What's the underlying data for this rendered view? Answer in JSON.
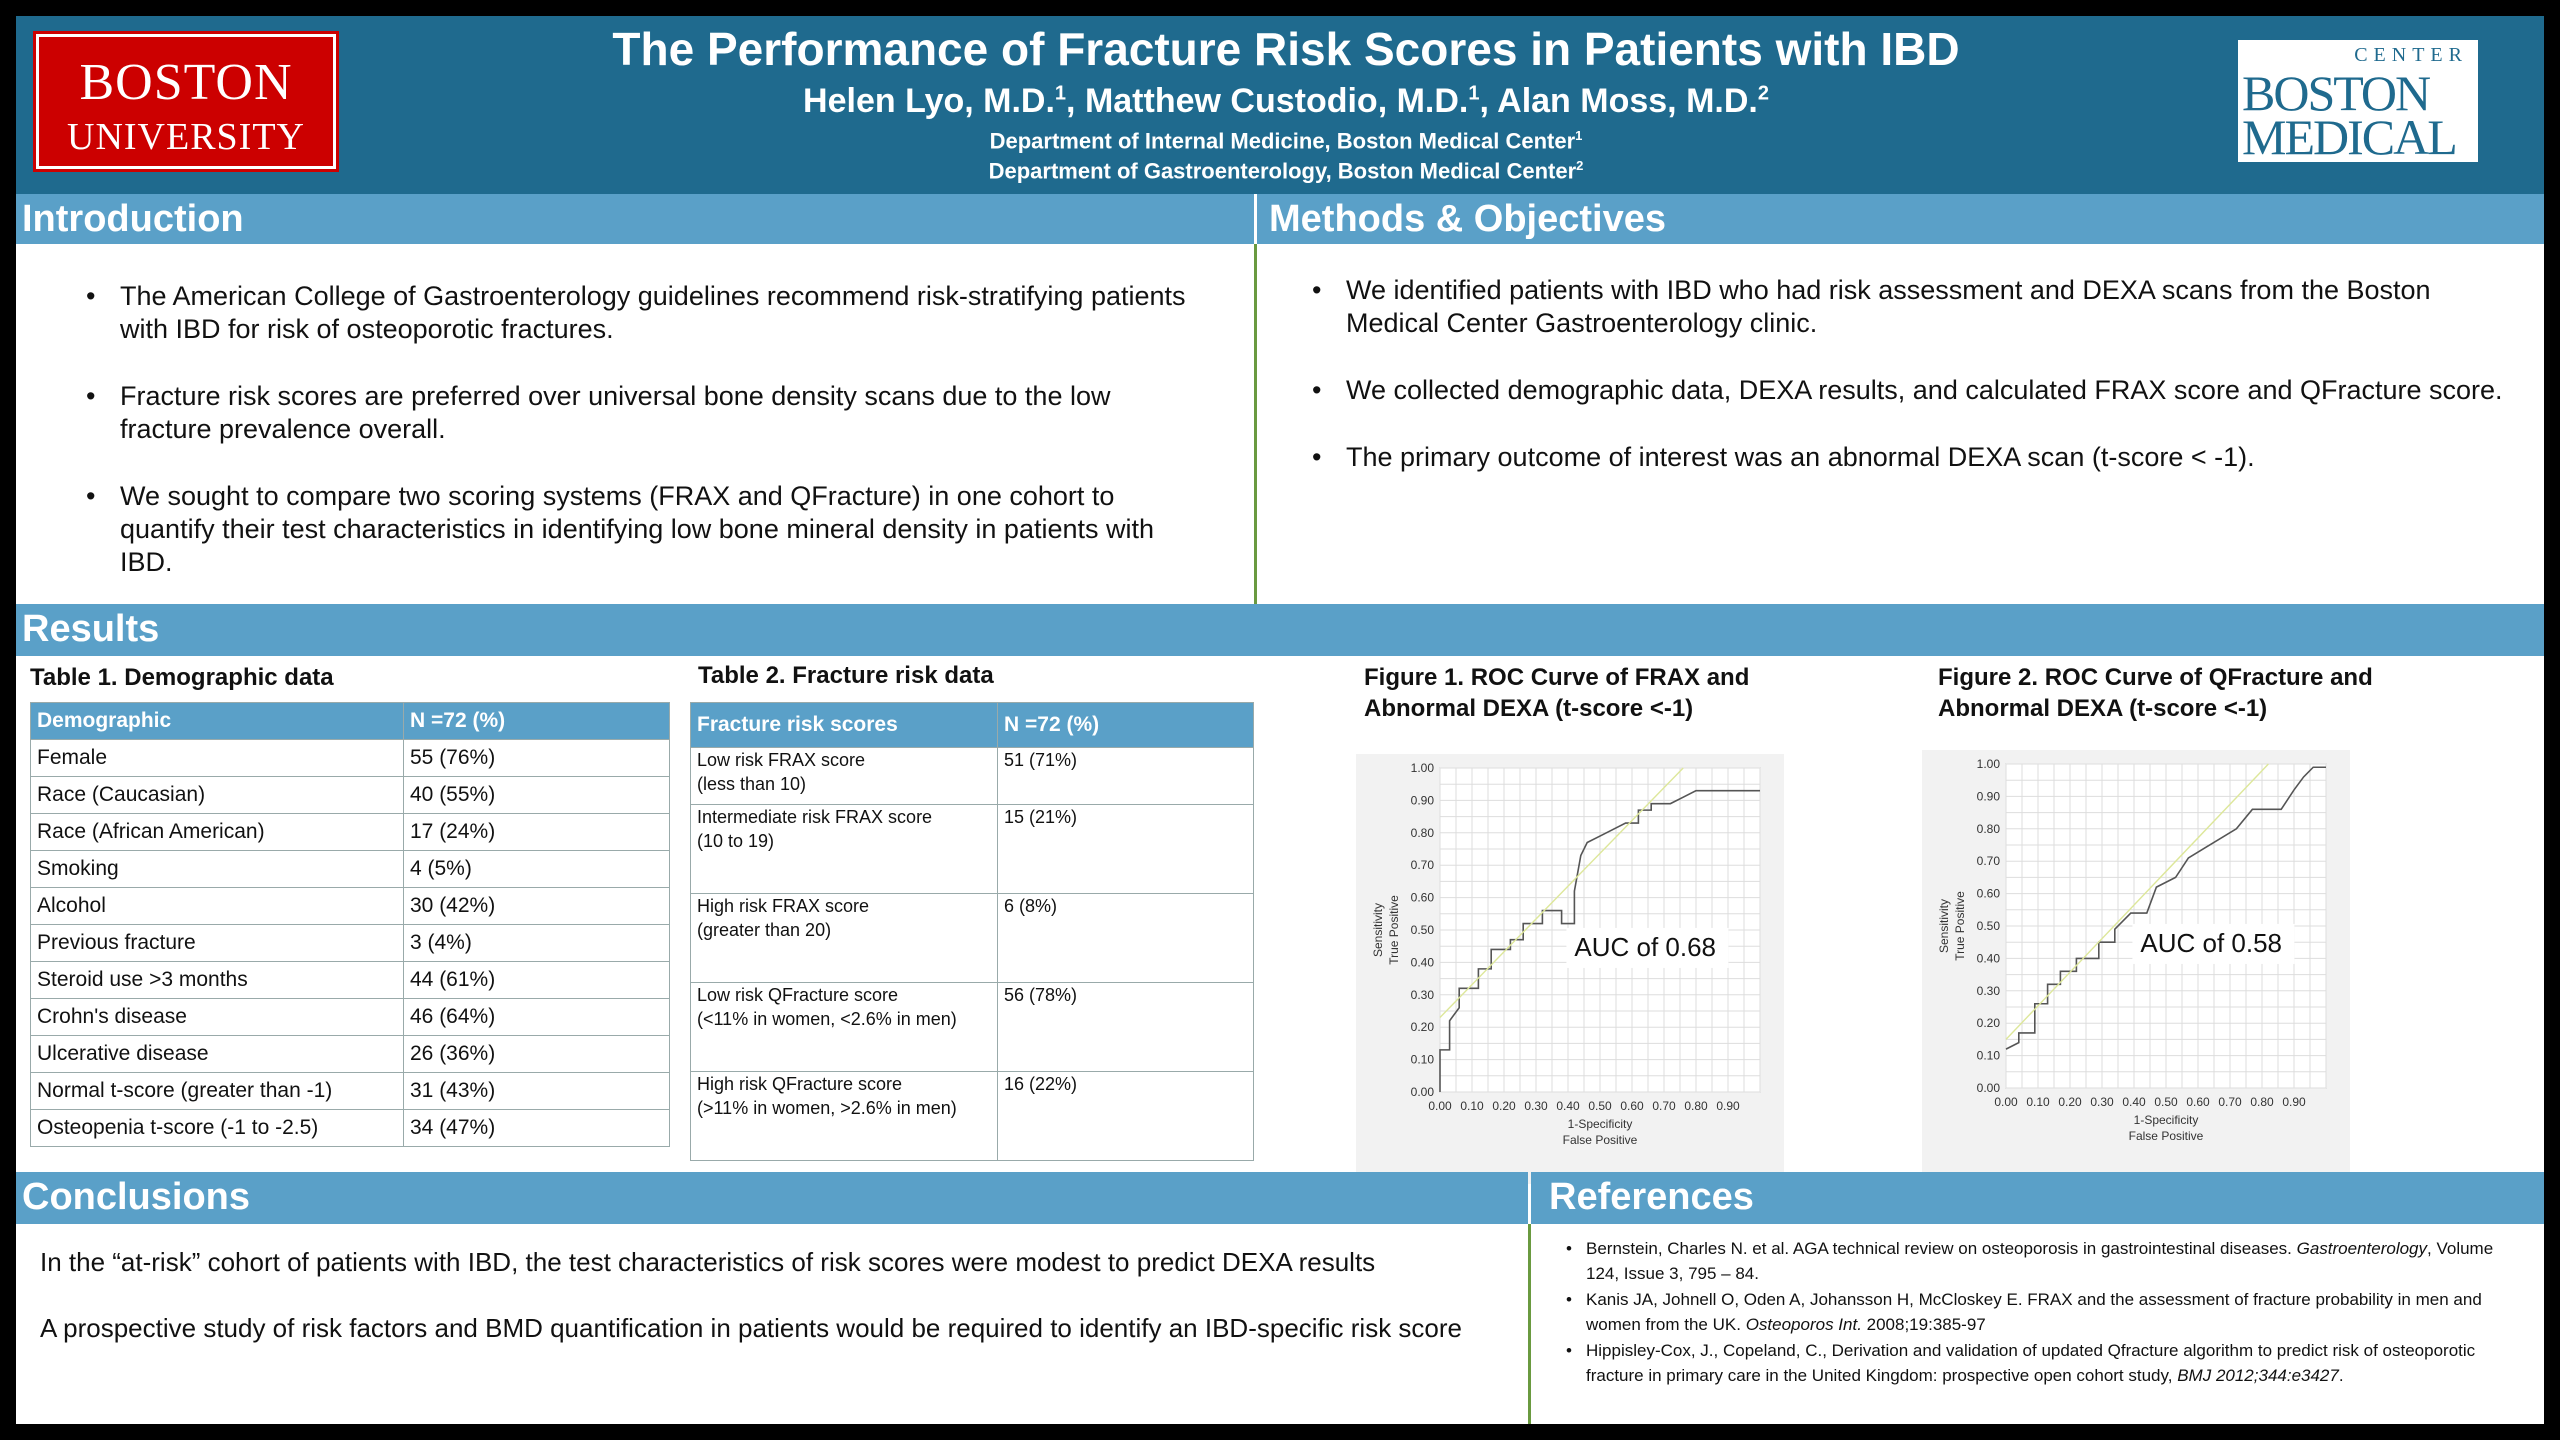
{
  "header": {
    "title": "The Performance of Fracture Risk Scores in Patients with IBD",
    "authors": [
      {
        "name": "Helen Lyo, M.D.",
        "sup": "1"
      },
      {
        "name": "Matthew Custodio, M.D.",
        "sup": "1"
      },
      {
        "name": "Alan Moss, M.D.",
        "sup": "2"
      }
    ],
    "affiliations": [
      {
        "text": "Department of Internal Medicine, Boston Medical Center",
        "sup": "1"
      },
      {
        "text": "Department of Gastroenterology, Boston Medical Center",
        "sup": "2"
      }
    ],
    "logo_left": {
      "line1": "BOSTON",
      "line2": "UNIVERSITY"
    },
    "logo_right": {
      "line1": "BOSTON",
      "line2": "MEDICAL",
      "center": "CENTER"
    }
  },
  "introduction": {
    "heading": "Introduction",
    "bullets": [
      "The American College of Gastroenterology guidelines recommend risk-stratifying patients with IBD for risk of osteoporotic fractures.",
      "Fracture risk scores are preferred over universal bone density scans due to the low fracture prevalence overall.",
      "We sought to compare two scoring systems (FRAX and QFracture) in one cohort to quantify their test characteristics in identifying low bone mineral density in patients with IBD."
    ]
  },
  "methods": {
    "heading": "Methods & Objectives",
    "bullets": [
      "We identified patients with IBD who had risk assessment and DEXA scans from the Boston Medical Center Gastroenterology clinic.",
      "We collected demographic data, DEXA results, and calculated FRAX score and QFracture score.",
      "The primary outcome of interest was an abnormal DEXA scan (t-score < -1)."
    ]
  },
  "results": {
    "heading": "Results",
    "table1": {
      "caption": "Table 1. Demographic data",
      "headers": [
        "Demographic",
        "N =72 (%)"
      ],
      "rows": [
        [
          "Female",
          "55 (76%)"
        ],
        [
          "Race (Caucasian)",
          "40 (55%)"
        ],
        [
          "Race (African American)",
          "17 (24%)"
        ],
        [
          "Smoking",
          "4 (5%)"
        ],
        [
          "Alcohol",
          "30 (42%)"
        ],
        [
          "Previous fracture",
          "3 (4%)"
        ],
        [
          "Steroid use >3 months",
          "44 (61%)"
        ],
        [
          "Crohn's disease",
          "46 (64%)"
        ],
        [
          "Ulcerative disease",
          "26 (36%)"
        ],
        [
          "Normal t-score (greater than -1)",
          "31 (43%)"
        ],
        [
          "Osteopenia t-score (-1 to -2.5)",
          "34 (47%)"
        ]
      ]
    },
    "table2": {
      "caption": "Table 2. Fracture risk data",
      "headers": [
        "Fracture risk scores",
        "N =72 (%)"
      ],
      "rows": [
        {
          "label1": "Low risk FRAX score",
          "label2": "(less than 10)",
          "value": "51 (71%)"
        },
        {
          "label1": "Intermediate risk FRAX score",
          "label2": "(10 to 19)",
          "value": "15 (21%)"
        },
        {
          "label1": "High risk FRAX score",
          "label2": "(greater than 20)",
          "value": "6 (8%)"
        },
        {
          "label1": "Low risk QFracture score",
          "label2": "(<11% in women, <2.6% in men)",
          "value": "56 (78%)"
        },
        {
          "label1": "High risk QFracture score",
          "label2": "(>11% in women, >2.6% in men)",
          "value": "16 (22%)"
        }
      ]
    }
  },
  "chart_data": [
    {
      "type": "line",
      "title": "Figure 1. ROC Curve of FRAX and Abnormal DEXA (t-score <-1)",
      "xlabel": "1-Specificity",
      "xlabel2": "False Positive",
      "ylabel": "Sensitivity",
      "ylabel2": "True Positive",
      "xlim": [
        0,
        1
      ],
      "ylim": [
        0,
        1
      ],
      "xticks": [
        "0.00",
        "0.10",
        "0.20",
        "0.30",
        "0.40",
        "0.50",
        "0.60",
        "0.70",
        "0.80",
        "0.90"
      ],
      "yticks": [
        "0.00",
        "0.10",
        "0.20",
        "0.30",
        "0.40",
        "0.50",
        "0.60",
        "0.70",
        "0.80",
        "0.90",
        "1.00"
      ],
      "annotation": "AUC of 0.68",
      "grid": true,
      "series": [
        {
          "role": "roc",
          "color": "#555555",
          "x": [
            0.0,
            0.0,
            0.03,
            0.03,
            0.06,
            0.06,
            0.12,
            0.12,
            0.16,
            0.16,
            0.22,
            0.22,
            0.26,
            0.26,
            0.32,
            0.32,
            0.38,
            0.38,
            0.42,
            0.42,
            0.44,
            0.46,
            0.5,
            0.54,
            0.58,
            0.62,
            0.62,
            0.66,
            0.66,
            0.72,
            0.76,
            0.8,
            1.0
          ],
          "y": [
            0.0,
            0.13,
            0.13,
            0.22,
            0.26,
            0.32,
            0.32,
            0.38,
            0.38,
            0.44,
            0.44,
            0.47,
            0.47,
            0.52,
            0.52,
            0.56,
            0.56,
            0.52,
            0.52,
            0.62,
            0.73,
            0.77,
            0.79,
            0.81,
            0.83,
            0.83,
            0.87,
            0.87,
            0.89,
            0.89,
            0.91,
            0.93,
            0.93
          ]
        },
        {
          "role": "reference",
          "color": "#dde79a",
          "x": [
            0.0,
            0.76
          ],
          "y": [
            0.23,
            1.0
          ]
        }
      ]
    },
    {
      "type": "line",
      "title": "Figure 2. ROC Curve of QFracture and Abnormal DEXA (t-score <-1)",
      "xlabel": "1-Specificity",
      "xlabel2": "False Positive",
      "ylabel": "Sensitivity",
      "ylabel2": "True Positive",
      "xlim": [
        0,
        1
      ],
      "ylim": [
        0,
        1
      ],
      "xticks": [
        "0.00",
        "0.10",
        "0.20",
        "0.30",
        "0.40",
        "0.50",
        "0.60",
        "0.70",
        "0.80",
        "0.90"
      ],
      "yticks": [
        "0.00",
        "0.10",
        "0.20",
        "0.30",
        "0.40",
        "0.50",
        "0.60",
        "0.70",
        "0.80",
        "0.90",
        "1.00"
      ],
      "annotation": "AUC of 0.58",
      "grid": true,
      "series": [
        {
          "role": "roc",
          "color": "#555555",
          "x": [
            0.0,
            0.04,
            0.04,
            0.09,
            0.09,
            0.13,
            0.13,
            0.17,
            0.17,
            0.22,
            0.22,
            0.29,
            0.29,
            0.34,
            0.34,
            0.39,
            0.44,
            0.47,
            0.47,
            0.53,
            0.53,
            0.57,
            0.57,
            0.62,
            0.72,
            0.77,
            0.86,
            0.9,
            0.93,
            0.96,
            1.0
          ],
          "y": [
            0.12,
            0.14,
            0.17,
            0.17,
            0.26,
            0.26,
            0.32,
            0.32,
            0.36,
            0.36,
            0.4,
            0.4,
            0.45,
            0.45,
            0.49,
            0.54,
            0.54,
            0.62,
            0.62,
            0.65,
            0.65,
            0.71,
            0.71,
            0.74,
            0.8,
            0.86,
            0.86,
            0.92,
            0.96,
            0.99,
            0.99
          ]
        },
        {
          "role": "reference",
          "color": "#dde79a",
          "x": [
            0.0,
            0.82
          ],
          "y": [
            0.15,
            1.0
          ]
        }
      ]
    }
  ],
  "conclusions": {
    "heading": "Conclusions",
    "paragraphs": [
      "In the “at-risk” cohort of patients with IBD, the test characteristics of risk scores were modest to predict DEXA results",
      "A prospective study of risk factors and BMD quantification in patients would be required to identify an IBD-specific risk score"
    ]
  },
  "references": {
    "heading": "References",
    "items": [
      {
        "text": "Bernstein, Charles N. et al. AGA technical review on osteoporosis in gastrointestinal diseases.",
        "journal": "Gastroenterology",
        "rest": ", Volume 124, Issue 3, 795 – 84."
      },
      {
        "text": "Kanis JA, Johnell O, Oden A, Johansson H, McCloskey E. FRAX and the assessment of fracture probability in men and women from the UK.",
        "journal": "Osteoporos Int.",
        "rest": " 2008;19:385-97"
      },
      {
        "text": "Hippisley-Cox, J., Copeland, C., Derivation and validation of updated Qfracture algorithm to predict risk of osteoporotic fracture in primary care in the United Kingdom: prospective open cohort study,",
        "journal": "BMJ 2012;344:e3427",
        "rest": "."
      }
    ]
  },
  "colors": {
    "header_bg": "#1f6a8e",
    "section_bar": "#5aa0c8",
    "divider": "#6a9a40",
    "bu_red": "#cc0000"
  }
}
